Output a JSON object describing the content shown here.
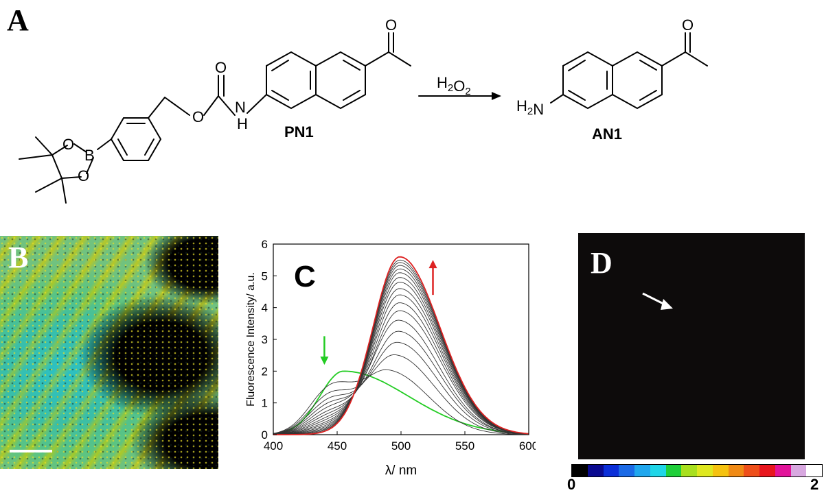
{
  "panels": {
    "a_letter": "A",
    "b_letter": "B",
    "c_letter": "C",
    "d_letter": "D"
  },
  "scheme": {
    "reactant_label": "PN1",
    "product_label": "AN1",
    "reagent": "H2O2",
    "atom_O": "O",
    "atom_N": "N",
    "atom_H": "H",
    "atom_B": "B",
    "amine": "H2N"
  },
  "chart_data": {
    "type": "line",
    "xlabel": "λ/ nm",
    "ylabel": "Fluorescence Intensity/ a.u.",
    "xlim": [
      400,
      600
    ],
    "ylim": [
      0,
      6
    ],
    "xticks": [
      400,
      450,
      500,
      550,
      600
    ],
    "yticks": [
      0,
      1,
      2,
      3,
      4,
      5,
      6
    ],
    "series": [
      {
        "color": "#22cc22",
        "peak_x": 455,
        "peak_y": 2.0,
        "role": "initial"
      },
      {
        "color": "#333333",
        "peak_x": 490,
        "peak_y": 2.0
      },
      {
        "color": "#333333",
        "peak_x": 495,
        "peak_y": 2.5
      },
      {
        "color": "#333333",
        "peak_x": 497,
        "peak_y": 2.9
      },
      {
        "color": "#333333",
        "peak_x": 498,
        "peak_y": 3.25
      },
      {
        "color": "#333333",
        "peak_x": 498,
        "peak_y": 3.6
      },
      {
        "color": "#333333",
        "peak_x": 499,
        "peak_y": 3.9
      },
      {
        "color": "#333333",
        "peak_x": 499,
        "peak_y": 4.15
      },
      {
        "color": "#333333",
        "peak_x": 499,
        "peak_y": 4.4
      },
      {
        "color": "#333333",
        "peak_x": 499,
        "peak_y": 4.6
      },
      {
        "color": "#333333",
        "peak_x": 499,
        "peak_y": 4.8
      },
      {
        "color": "#333333",
        "peak_x": 499,
        "peak_y": 4.95
      },
      {
        "color": "#333333",
        "peak_x": 499,
        "peak_y": 5.1
      },
      {
        "color": "#333333",
        "peak_x": 499,
        "peak_y": 5.22
      },
      {
        "color": "#333333",
        "peak_x": 499,
        "peak_y": 5.33
      },
      {
        "color": "#333333",
        "peak_x": 499,
        "peak_y": 5.42
      },
      {
        "color": "#333333",
        "peak_x": 499,
        "peak_y": 5.5
      },
      {
        "color": "#dd2222",
        "peak_x": 499,
        "peak_y": 5.6,
        "role": "final"
      }
    ],
    "annotations": [
      {
        "type": "arrow-down",
        "color": "#22cc22",
        "x": 440,
        "y_from": 3.1,
        "y_to": 2.2
      },
      {
        "type": "arrow-up",
        "color": "#dd2222",
        "x": 525,
        "y_from": 4.4,
        "y_to": 5.5
      }
    ]
  },
  "colorbar": {
    "min_label": "0",
    "max_label": "2",
    "colors": [
      "#000000",
      "#0a0a90",
      "#0b2fd8",
      "#1b6ae6",
      "#20a7ee",
      "#1fd6e8",
      "#1fcf3a",
      "#a8e01e",
      "#dfe81f",
      "#f5c20f",
      "#f08a15",
      "#ee4f1a",
      "#e8161e",
      "#e2149a",
      "#d8a8e0",
      "#ffffff"
    ]
  },
  "colors": {
    "scale_bar": "#ffffff",
    "panel_d_arrow": "#ffffff"
  }
}
